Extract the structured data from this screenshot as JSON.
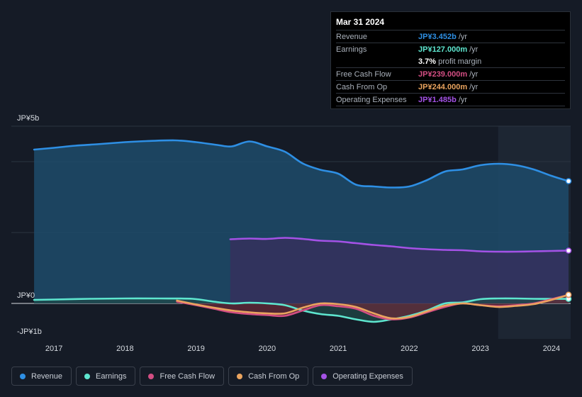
{
  "tooltip": {
    "date": "Mar 31 2024",
    "rows": [
      {
        "label": "Revenue",
        "value": "JP¥3.452b",
        "unit": "/yr",
        "color": "#2e8fe4"
      },
      {
        "label": "Earnings",
        "value": "JP¥127.000m",
        "unit": "/yr",
        "color": "#5ee6cf"
      },
      {
        "label": "",
        "value": "3.7%",
        "unit": "profit margin",
        "color": "#ffffff"
      },
      {
        "label": "Free Cash Flow",
        "value": "JP¥239.000m",
        "unit": "/yr",
        "color": "#d34e83"
      },
      {
        "label": "Cash From Op",
        "value": "JP¥244.000m",
        "unit": "/yr",
        "color": "#eaa45f"
      },
      {
        "label": "Operating Expenses",
        "value": "JP¥1.485b",
        "unit": "/yr",
        "color": "#a452e6"
      }
    ]
  },
  "legend": [
    {
      "label": "Revenue",
      "color": "#2e8fe4"
    },
    {
      "label": "Earnings",
      "color": "#5ee6cf"
    },
    {
      "label": "Free Cash Flow",
      "color": "#d34e83"
    },
    {
      "label": "Cash From Op",
      "color": "#eaa45f"
    },
    {
      "label": "Operating Expenses",
      "color": "#a452e6"
    }
  ],
  "chart_data": {
    "type": "area",
    "title": "",
    "xlabel": "",
    "ylabel": "",
    "y_unit": "JP¥b",
    "xlim": [
      2016.4,
      2024.27
    ],
    "ylim": [
      -1,
      5
    ],
    "y_tick_labels": [
      {
        "value": 5,
        "label": "JP¥5b"
      },
      {
        "value": 0,
        "label": "JP¥0"
      },
      {
        "value": -1,
        "label": "-JP¥1b"
      }
    ],
    "x_ticks": [
      {
        "value": 2017,
        "label": "2017"
      },
      {
        "value": 2018,
        "label": "2018"
      },
      {
        "value": 2019,
        "label": "2019"
      },
      {
        "value": 2020,
        "label": "2020"
      },
      {
        "value": 2021,
        "label": "2021"
      },
      {
        "value": 2022,
        "label": "2022"
      },
      {
        "value": 2023,
        "label": "2023"
      },
      {
        "value": 2024,
        "label": "2024"
      }
    ],
    "gridlines": [
      5,
      4,
      2,
      0
    ],
    "highlight_from": 2023.25,
    "series": [
      {
        "name": "Revenue",
        "key": "revenue",
        "color": "#2e8fe4",
        "fill": true,
        "fill_color": "#1d4b6b",
        "points": [
          [
            2016.72,
            4.34
          ],
          [
            2017.0,
            4.39
          ],
          [
            2017.3,
            4.45
          ],
          [
            2017.6,
            4.49
          ],
          [
            2018.0,
            4.55
          ],
          [
            2018.3,
            4.58
          ],
          [
            2018.7,
            4.6
          ],
          [
            2019.0,
            4.55
          ],
          [
            2019.3,
            4.47
          ],
          [
            2019.5,
            4.43
          ],
          [
            2019.75,
            4.57
          ],
          [
            2020.0,
            4.43
          ],
          [
            2020.25,
            4.28
          ],
          [
            2020.5,
            3.95
          ],
          [
            2020.75,
            3.77
          ],
          [
            2021.0,
            3.66
          ],
          [
            2021.25,
            3.35
          ],
          [
            2021.5,
            3.3
          ],
          [
            2021.75,
            3.27
          ],
          [
            2022.0,
            3.3
          ],
          [
            2022.25,
            3.48
          ],
          [
            2022.5,
            3.72
          ],
          [
            2022.75,
            3.78
          ],
          [
            2023.0,
            3.9
          ],
          [
            2023.25,
            3.94
          ],
          [
            2023.5,
            3.9
          ],
          [
            2023.75,
            3.78
          ],
          [
            2024.0,
            3.6
          ],
          [
            2024.24,
            3.45
          ]
        ]
      },
      {
        "name": "Operating Expenses",
        "key": "opex",
        "color": "#a452e6",
        "fill": true,
        "fill_color": "#3a2c5c",
        "points": [
          [
            2019.48,
            1.81
          ],
          [
            2019.75,
            1.83
          ],
          [
            2020.0,
            1.82
          ],
          [
            2020.25,
            1.85
          ],
          [
            2020.5,
            1.82
          ],
          [
            2020.75,
            1.77
          ],
          [
            2021.0,
            1.75
          ],
          [
            2021.25,
            1.7
          ],
          [
            2021.5,
            1.65
          ],
          [
            2021.75,
            1.61
          ],
          [
            2022.0,
            1.56
          ],
          [
            2022.25,
            1.53
          ],
          [
            2022.5,
            1.51
          ],
          [
            2022.75,
            1.5
          ],
          [
            2023.0,
            1.47
          ],
          [
            2023.25,
            1.46
          ],
          [
            2023.5,
            1.46
          ],
          [
            2023.75,
            1.47
          ],
          [
            2024.0,
            1.48
          ],
          [
            2024.24,
            1.49
          ]
        ]
      },
      {
        "name": "Earnings",
        "key": "earnings",
        "color": "#5ee6cf",
        "fill": true,
        "fill_color": "#1f4a48",
        "points": [
          [
            2016.72,
            0.1
          ],
          [
            2017.0,
            0.11
          ],
          [
            2017.5,
            0.13
          ],
          [
            2018.0,
            0.14
          ],
          [
            2018.5,
            0.14
          ],
          [
            2018.95,
            0.13
          ],
          [
            2019.25,
            0.05
          ],
          [
            2019.5,
            0.0
          ],
          [
            2019.75,
            0.02
          ],
          [
            2020.0,
            0.0
          ],
          [
            2020.25,
            -0.05
          ],
          [
            2020.5,
            -0.2
          ],
          [
            2020.75,
            -0.3
          ],
          [
            2021.0,
            -0.35
          ],
          [
            2021.25,
            -0.45
          ],
          [
            2021.5,
            -0.52
          ],
          [
            2021.75,
            -0.45
          ],
          [
            2022.0,
            -0.35
          ],
          [
            2022.25,
            -0.2
          ],
          [
            2022.5,
            0.0
          ],
          [
            2022.75,
            0.03
          ],
          [
            2023.0,
            0.12
          ],
          [
            2023.25,
            0.14
          ],
          [
            2023.5,
            0.14
          ],
          [
            2023.75,
            0.13
          ],
          [
            2024.0,
            0.13
          ],
          [
            2024.24,
            0.127
          ]
        ]
      },
      {
        "name": "Free Cash Flow",
        "key": "fcf",
        "color": "#d34e83",
        "fill": true,
        "fill_color": "#6b2a3a",
        "points": [
          [
            2018.73,
            0.05
          ],
          [
            2019.0,
            -0.05
          ],
          [
            2019.25,
            -0.15
          ],
          [
            2019.5,
            -0.25
          ],
          [
            2019.75,
            -0.3
          ],
          [
            2020.0,
            -0.33
          ],
          [
            2020.25,
            -0.35
          ],
          [
            2020.5,
            -0.2
          ],
          [
            2020.75,
            -0.05
          ],
          [
            2021.0,
            -0.08
          ],
          [
            2021.25,
            -0.15
          ],
          [
            2021.5,
            -0.35
          ],
          [
            2021.75,
            -0.45
          ],
          [
            2022.0,
            -0.4
          ],
          [
            2022.25,
            -0.25
          ],
          [
            2022.5,
            -0.1
          ],
          [
            2022.75,
            0.0
          ],
          [
            2023.0,
            -0.05
          ],
          [
            2023.25,
            -0.08
          ],
          [
            2023.5,
            -0.05
          ],
          [
            2023.75,
            0.0
          ],
          [
            2024.0,
            0.12
          ],
          [
            2024.24,
            0.239
          ]
        ]
      },
      {
        "name": "Cash From Op",
        "key": "cfo",
        "color": "#eaa45f",
        "fill": false,
        "points": [
          [
            2018.73,
            0.08
          ],
          [
            2019.0,
            -0.03
          ],
          [
            2019.25,
            -0.12
          ],
          [
            2019.5,
            -0.2
          ],
          [
            2019.75,
            -0.25
          ],
          [
            2020.0,
            -0.28
          ],
          [
            2020.25,
            -0.28
          ],
          [
            2020.5,
            -0.12
          ],
          [
            2020.75,
            0.0
          ],
          [
            2021.0,
            -0.02
          ],
          [
            2021.25,
            -0.1
          ],
          [
            2021.5,
            -0.28
          ],
          [
            2021.75,
            -0.42
          ],
          [
            2022.0,
            -0.38
          ],
          [
            2022.25,
            -0.22
          ],
          [
            2022.5,
            -0.06
          ],
          [
            2022.75,
            0.0
          ],
          [
            2023.0,
            -0.05
          ],
          [
            2023.25,
            -0.1
          ],
          [
            2023.5,
            -0.07
          ],
          [
            2023.75,
            -0.02
          ],
          [
            2024.0,
            0.1
          ],
          [
            2024.24,
            0.244
          ]
        ]
      }
    ]
  }
}
